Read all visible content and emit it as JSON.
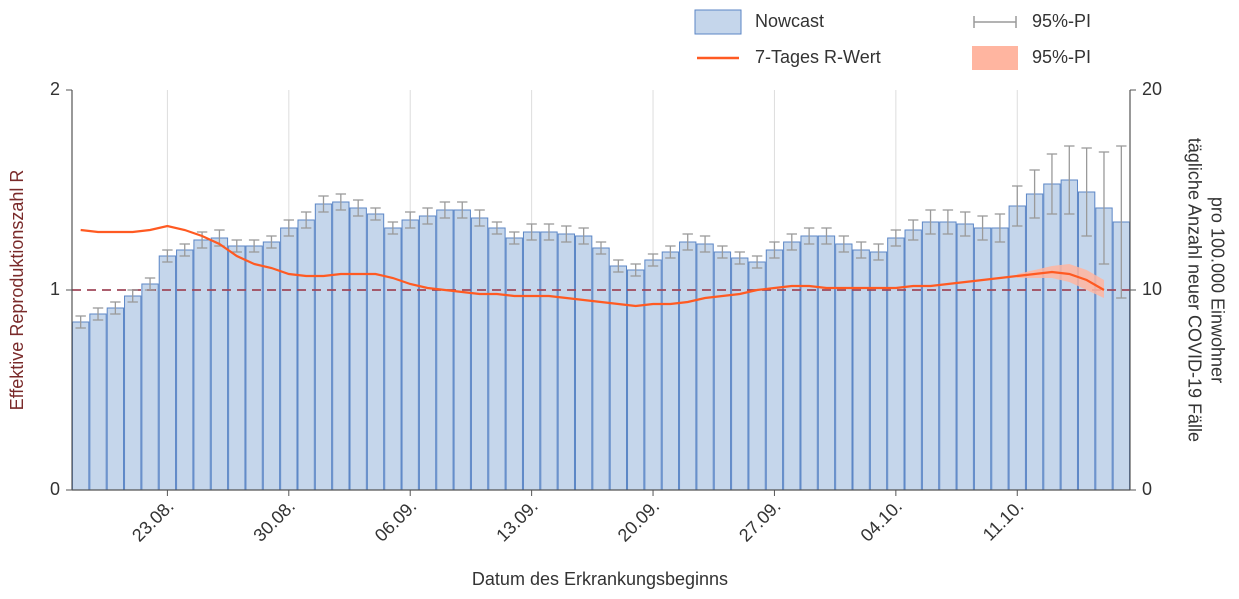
{
  "chart_data": {
    "type": "bar",
    "x_label": "Datum des Erkrankungsbeginns",
    "y_label": "Effektive Reproduktionszahl R",
    "y2_label": [
      "tägliche Anzahl neuer COVID-19 Fälle",
      "pro 100.000 Einwohner"
    ],
    "categories": [
      null,
      null,
      null,
      null,
      null,
      "23.08.",
      null,
      null,
      null,
      null,
      null,
      null,
      "30.08.",
      null,
      null,
      null,
      null,
      null,
      null,
      "06.09.",
      null,
      null,
      null,
      null,
      null,
      null,
      "13.09.",
      null,
      null,
      null,
      null,
      null,
      null,
      "20.09.",
      null,
      null,
      null,
      null,
      null,
      null,
      "27.09.",
      null,
      null,
      null,
      null,
      null,
      null,
      "04.10.",
      null,
      null,
      null,
      null,
      null,
      null,
      "11.10.",
      null,
      null,
      null,
      null,
      null,
      null
    ],
    "ylim": [
      0,
      2
    ],
    "yticks": [
      0,
      1,
      2
    ],
    "y2lim": [
      0,
      20
    ],
    "y2ticks": [
      0,
      10,
      20
    ],
    "hline": 1,
    "hline_color": "#a0485a",
    "series": [
      {
        "name": "Nowcast",
        "type": "bar",
        "axis": "y2",
        "color": "#c5d6eb",
        "edge_color": "#5b86c6",
        "values": [
          8.4,
          8.8,
          9.1,
          9.7,
          10.3,
          11.7,
          12.0,
          12.5,
          12.6,
          12.2,
          12.2,
          12.4,
          13.1,
          13.5,
          14.3,
          14.4,
          14.1,
          13.8,
          13.1,
          13.5,
          13.7,
          14.0,
          14.0,
          13.6,
          13.1,
          12.6,
          12.9,
          12.9,
          12.8,
          12.7,
          12.1,
          11.2,
          11.0,
          11.5,
          11.9,
          12.4,
          12.3,
          11.9,
          11.6,
          11.4,
          12.0,
          12.4,
          12.7,
          12.7,
          12.3,
          12.0,
          11.9,
          12.6,
          13.0,
          13.4,
          13.4,
          13.3,
          13.1,
          13.1,
          14.2,
          14.8,
          15.3,
          15.5,
          14.9,
          14.1,
          13.4
        ]
      },
      {
        "name": "7-Tages R-Wert",
        "type": "line",
        "color": "#ff5a22",
        "values": [
          1.3,
          1.29,
          1.29,
          1.29,
          1.3,
          1.32,
          1.3,
          1.27,
          1.23,
          1.17,
          1.13,
          1.11,
          1.08,
          1.07,
          1.07,
          1.08,
          1.08,
          1.08,
          1.06,
          1.03,
          1.01,
          1.0,
          0.99,
          0.98,
          0.98,
          0.97,
          0.97,
          0.97,
          0.96,
          0.95,
          0.94,
          0.93,
          0.92,
          0.93,
          0.93,
          0.94,
          0.96,
          0.97,
          0.98,
          1.0,
          1.01,
          1.02,
          1.02,
          1.01,
          1.01,
          1.01,
          1.01,
          1.01,
          1.02,
          1.02,
          1.03,
          1.04,
          1.05,
          1.06,
          1.07,
          1.08,
          1.09,
          1.08,
          1.05,
          1.0,
          null
        ]
      },
      {
        "name": "95%-PI",
        "type": "errorbar",
        "of": "Nowcast",
        "axis": "y2",
        "color": "#9a9a9a",
        "values": [
          0.3,
          0.3,
          0.3,
          0.3,
          0.3,
          0.3,
          0.3,
          0.4,
          0.4,
          0.3,
          0.3,
          0.3,
          0.4,
          0.4,
          0.4,
          0.4,
          0.4,
          0.3,
          0.3,
          0.4,
          0.4,
          0.4,
          0.4,
          0.4,
          0.3,
          0.3,
          0.4,
          0.4,
          0.4,
          0.4,
          0.3,
          0.3,
          0.3,
          0.3,
          0.3,
          0.4,
          0.4,
          0.3,
          0.3,
          0.3,
          0.4,
          0.4,
          0.4,
          0.4,
          0.4,
          0.4,
          0.4,
          0.4,
          0.5,
          0.6,
          0.6,
          0.6,
          0.6,
          0.7,
          1.0,
          1.2,
          1.5,
          1.7,
          2.2,
          2.8,
          3.8
        ]
      },
      {
        "name": "95%-PI",
        "type": "band",
        "of": "7-Tages R-Wert",
        "color": "#ffb5a0",
        "lower": [
          null,
          null,
          null,
          null,
          null,
          null,
          null,
          null,
          null,
          null,
          null,
          null,
          null,
          null,
          null,
          null,
          null,
          null,
          null,
          null,
          null,
          null,
          null,
          null,
          null,
          null,
          null,
          null,
          null,
          null,
          null,
          null,
          null,
          null,
          null,
          null,
          null,
          null,
          null,
          null,
          null,
          null,
          null,
          null,
          null,
          null,
          null,
          null,
          null,
          null,
          null,
          null,
          null,
          null,
          1.06,
          1.06,
          1.06,
          1.04,
          1.0,
          0.96,
          null
        ],
        "upper": [
          null,
          null,
          null,
          null,
          null,
          null,
          null,
          null,
          null,
          null,
          null,
          null,
          null,
          null,
          null,
          null,
          null,
          null,
          null,
          null,
          null,
          null,
          null,
          null,
          null,
          null,
          null,
          null,
          null,
          null,
          null,
          null,
          null,
          null,
          null,
          null,
          null,
          null,
          null,
          null,
          null,
          null,
          null,
          null,
          null,
          null,
          null,
          null,
          null,
          null,
          null,
          null,
          null,
          null,
          1.08,
          1.1,
          1.12,
          1.13,
          1.1,
          1.05,
          null
        ]
      }
    ]
  }
}
